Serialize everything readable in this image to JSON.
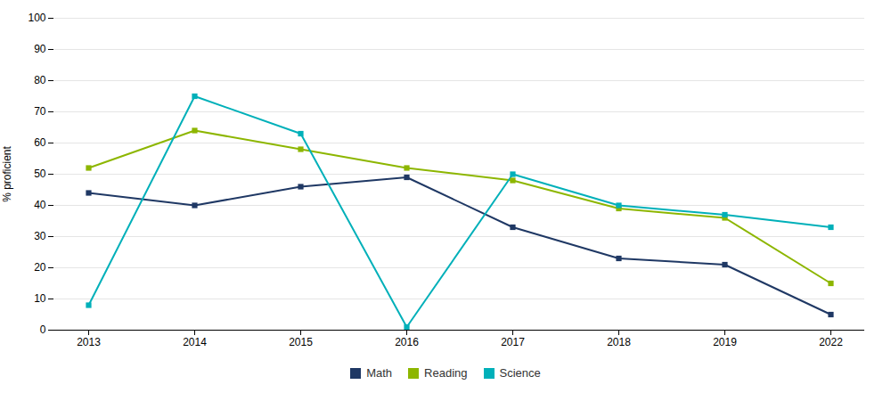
{
  "chart_data": {
    "type": "line",
    "ylabel": "% proficient",
    "categories": [
      "2013",
      "2014",
      "2015",
      "2016",
      "2017",
      "2018",
      "2019",
      "2022"
    ],
    "series": [
      {
        "name": "Math",
        "color": "#1f3864",
        "values": [
          44,
          40,
          46,
          49,
          33,
          23,
          21,
          5
        ]
      },
      {
        "name": "Reading",
        "color": "#8db600",
        "values": [
          52,
          64,
          58,
          52,
          48,
          39,
          36,
          15
        ]
      },
      {
        "name": "Science",
        "color": "#00b0b9",
        "values": [
          8,
          75,
          63,
          1,
          50,
          40,
          37,
          33
        ]
      }
    ],
    "ylim": [
      0,
      100
    ],
    "yticks": [
      0,
      10,
      20,
      30,
      40,
      50,
      60,
      70,
      80,
      90,
      100
    ],
    "grid": true,
    "legend": "bottom",
    "marker": "square"
  }
}
